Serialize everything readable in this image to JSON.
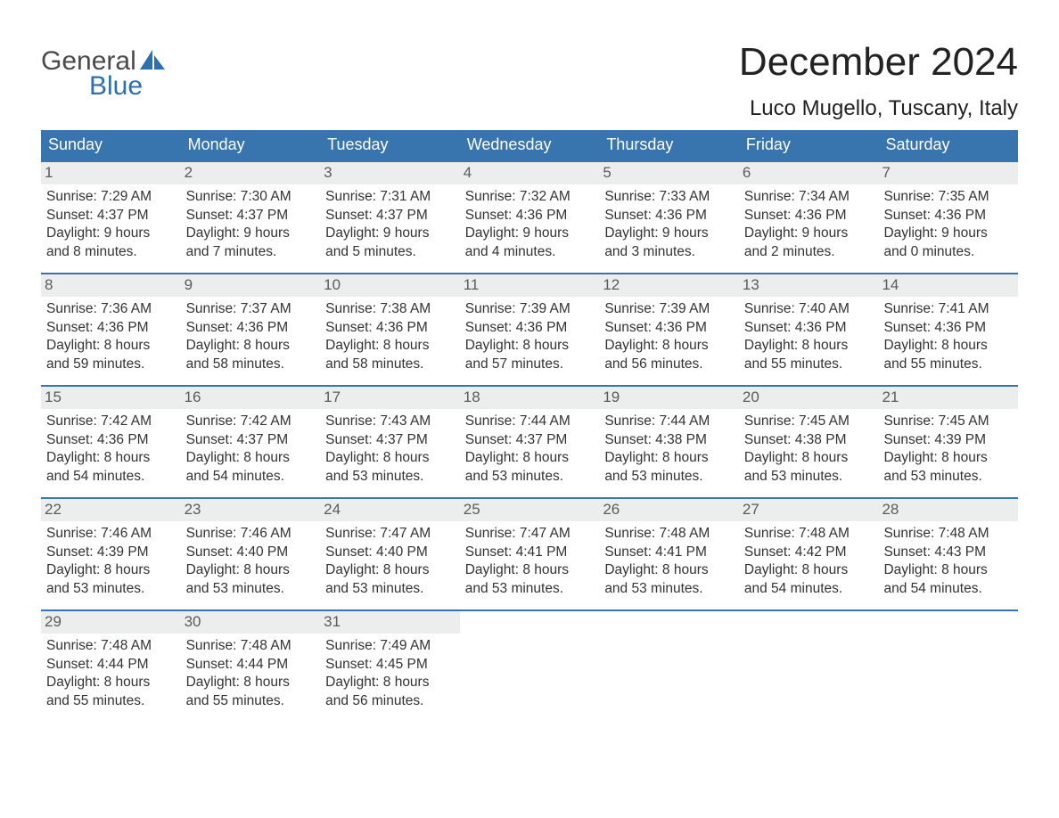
{
  "brand": {
    "line1": "General",
    "line2": "Blue"
  },
  "title": "December 2024",
  "location": "Luco Mugello, Tuscany, Italy",
  "colors": {
    "header_bg": "#3874ad",
    "header_text": "#ffffff",
    "daynum_bg": "#eceded",
    "daynum_text": "#5b5b5b",
    "body_text": "#333333",
    "week_border": "#3874ad",
    "logo_gray": "#4a4a4a",
    "logo_blue": "#2f6fb0",
    "background": "#ffffff"
  },
  "typography": {
    "title_fontsize": 44,
    "location_fontsize": 24,
    "dow_fontsize": 18,
    "daynum_fontsize": 17,
    "body_fontsize": 15.5,
    "logo_fontsize": 30
  },
  "dow": [
    "Sunday",
    "Monday",
    "Tuesday",
    "Wednesday",
    "Thursday",
    "Friday",
    "Saturday"
  ],
  "weeks": [
    [
      {
        "n": "1",
        "sunrise": "Sunrise: 7:29 AM",
        "sunset": "Sunset: 4:37 PM",
        "d1": "Daylight: 9 hours",
        "d2": "and 8 minutes."
      },
      {
        "n": "2",
        "sunrise": "Sunrise: 7:30 AM",
        "sunset": "Sunset: 4:37 PM",
        "d1": "Daylight: 9 hours",
        "d2": "and 7 minutes."
      },
      {
        "n": "3",
        "sunrise": "Sunrise: 7:31 AM",
        "sunset": "Sunset: 4:37 PM",
        "d1": "Daylight: 9 hours",
        "d2": "and 5 minutes."
      },
      {
        "n": "4",
        "sunrise": "Sunrise: 7:32 AM",
        "sunset": "Sunset: 4:36 PM",
        "d1": "Daylight: 9 hours",
        "d2": "and 4 minutes."
      },
      {
        "n": "5",
        "sunrise": "Sunrise: 7:33 AM",
        "sunset": "Sunset: 4:36 PM",
        "d1": "Daylight: 9 hours",
        "d2": "and 3 minutes."
      },
      {
        "n": "6",
        "sunrise": "Sunrise: 7:34 AM",
        "sunset": "Sunset: 4:36 PM",
        "d1": "Daylight: 9 hours",
        "d2": "and 2 minutes."
      },
      {
        "n": "7",
        "sunrise": "Sunrise: 7:35 AM",
        "sunset": "Sunset: 4:36 PM",
        "d1": "Daylight: 9 hours",
        "d2": "and 0 minutes."
      }
    ],
    [
      {
        "n": "8",
        "sunrise": "Sunrise: 7:36 AM",
        "sunset": "Sunset: 4:36 PM",
        "d1": "Daylight: 8 hours",
        "d2": "and 59 minutes."
      },
      {
        "n": "9",
        "sunrise": "Sunrise: 7:37 AM",
        "sunset": "Sunset: 4:36 PM",
        "d1": "Daylight: 8 hours",
        "d2": "and 58 minutes."
      },
      {
        "n": "10",
        "sunrise": "Sunrise: 7:38 AM",
        "sunset": "Sunset: 4:36 PM",
        "d1": "Daylight: 8 hours",
        "d2": "and 58 minutes."
      },
      {
        "n": "11",
        "sunrise": "Sunrise: 7:39 AM",
        "sunset": "Sunset: 4:36 PM",
        "d1": "Daylight: 8 hours",
        "d2": "and 57 minutes."
      },
      {
        "n": "12",
        "sunrise": "Sunrise: 7:39 AM",
        "sunset": "Sunset: 4:36 PM",
        "d1": "Daylight: 8 hours",
        "d2": "and 56 minutes."
      },
      {
        "n": "13",
        "sunrise": "Sunrise: 7:40 AM",
        "sunset": "Sunset: 4:36 PM",
        "d1": "Daylight: 8 hours",
        "d2": "and 55 minutes."
      },
      {
        "n": "14",
        "sunrise": "Sunrise: 7:41 AM",
        "sunset": "Sunset: 4:36 PM",
        "d1": "Daylight: 8 hours",
        "d2": "and 55 minutes."
      }
    ],
    [
      {
        "n": "15",
        "sunrise": "Sunrise: 7:42 AM",
        "sunset": "Sunset: 4:36 PM",
        "d1": "Daylight: 8 hours",
        "d2": "and 54 minutes."
      },
      {
        "n": "16",
        "sunrise": "Sunrise: 7:42 AM",
        "sunset": "Sunset: 4:37 PM",
        "d1": "Daylight: 8 hours",
        "d2": "and 54 minutes."
      },
      {
        "n": "17",
        "sunrise": "Sunrise: 7:43 AM",
        "sunset": "Sunset: 4:37 PM",
        "d1": "Daylight: 8 hours",
        "d2": "and 53 minutes."
      },
      {
        "n": "18",
        "sunrise": "Sunrise: 7:44 AM",
        "sunset": "Sunset: 4:37 PM",
        "d1": "Daylight: 8 hours",
        "d2": "and 53 minutes."
      },
      {
        "n": "19",
        "sunrise": "Sunrise: 7:44 AM",
        "sunset": "Sunset: 4:38 PM",
        "d1": "Daylight: 8 hours",
        "d2": "and 53 minutes."
      },
      {
        "n": "20",
        "sunrise": "Sunrise: 7:45 AM",
        "sunset": "Sunset: 4:38 PM",
        "d1": "Daylight: 8 hours",
        "d2": "and 53 minutes."
      },
      {
        "n": "21",
        "sunrise": "Sunrise: 7:45 AM",
        "sunset": "Sunset: 4:39 PM",
        "d1": "Daylight: 8 hours",
        "d2": "and 53 minutes."
      }
    ],
    [
      {
        "n": "22",
        "sunrise": "Sunrise: 7:46 AM",
        "sunset": "Sunset: 4:39 PM",
        "d1": "Daylight: 8 hours",
        "d2": "and 53 minutes."
      },
      {
        "n": "23",
        "sunrise": "Sunrise: 7:46 AM",
        "sunset": "Sunset: 4:40 PM",
        "d1": "Daylight: 8 hours",
        "d2": "and 53 minutes."
      },
      {
        "n": "24",
        "sunrise": "Sunrise: 7:47 AM",
        "sunset": "Sunset: 4:40 PM",
        "d1": "Daylight: 8 hours",
        "d2": "and 53 minutes."
      },
      {
        "n": "25",
        "sunrise": "Sunrise: 7:47 AM",
        "sunset": "Sunset: 4:41 PM",
        "d1": "Daylight: 8 hours",
        "d2": "and 53 minutes."
      },
      {
        "n": "26",
        "sunrise": "Sunrise: 7:48 AM",
        "sunset": "Sunset: 4:41 PM",
        "d1": "Daylight: 8 hours",
        "d2": "and 53 minutes."
      },
      {
        "n": "27",
        "sunrise": "Sunrise: 7:48 AM",
        "sunset": "Sunset: 4:42 PM",
        "d1": "Daylight: 8 hours",
        "d2": "and 54 minutes."
      },
      {
        "n": "28",
        "sunrise": "Sunrise: 7:48 AM",
        "sunset": "Sunset: 4:43 PM",
        "d1": "Daylight: 8 hours",
        "d2": "and 54 minutes."
      }
    ],
    [
      {
        "n": "29",
        "sunrise": "Sunrise: 7:48 AM",
        "sunset": "Sunset: 4:44 PM",
        "d1": "Daylight: 8 hours",
        "d2": "and 55 minutes."
      },
      {
        "n": "30",
        "sunrise": "Sunrise: 7:48 AM",
        "sunset": "Sunset: 4:44 PM",
        "d1": "Daylight: 8 hours",
        "d2": "and 55 minutes."
      },
      {
        "n": "31",
        "sunrise": "Sunrise: 7:49 AM",
        "sunset": "Sunset: 4:45 PM",
        "d1": "Daylight: 8 hours",
        "d2": "and 56 minutes."
      },
      null,
      null,
      null,
      null
    ]
  ]
}
